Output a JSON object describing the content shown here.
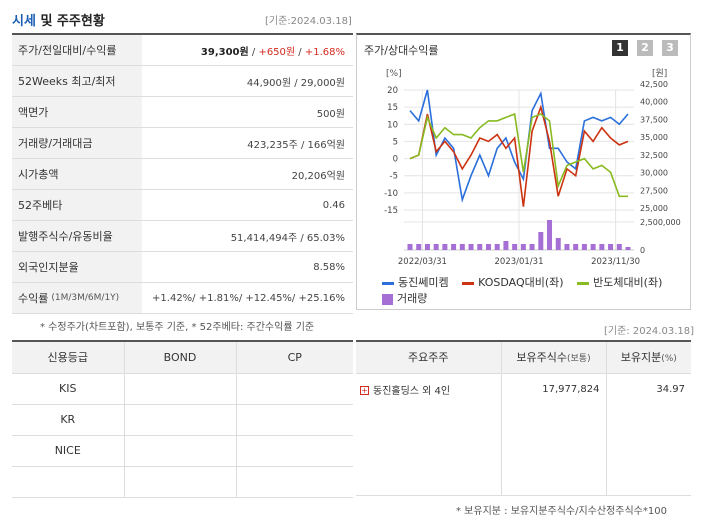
{
  "header": {
    "title_blue": "시세",
    "title_rest": " 및 주주현황",
    "date": "[기준:2024.03.18]"
  },
  "price_table": [
    {
      "label": "주가/전일대비/수익률",
      "price": "39,300원",
      "sep1": " / ",
      "change": "+650원",
      "sep2": " / ",
      "pct": "+1.68%"
    },
    {
      "label": "52Weeks 최고/최저",
      "value": "44,900원 / 29,000원"
    },
    {
      "label": "액면가",
      "value": "500원"
    },
    {
      "label": "거래량/거래대금",
      "value": "423,235주 / 166억원"
    },
    {
      "label": "시가총액",
      "value": "20,206억원"
    },
    {
      "label": "52주베타",
      "value": "0.46"
    },
    {
      "label": "발행주식수/유동비율",
      "value": "51,414,494주 / 65.03%"
    },
    {
      "label": "외국인지분율",
      "value": "8.58%"
    },
    {
      "label": "수익률",
      "label_sub": "(1M/3M/6M/1Y)",
      "value": "+1.42%/ +1.81%/ +12.45%/ +25.16%"
    }
  ],
  "note_left": "* 수정주가(차트포함), 보통주 기준, * 52주베타: 주간수익률 기준",
  "chart_panel": {
    "title": "주가/상대수익률",
    "buttons": [
      "1",
      "2",
      "3"
    ],
    "button_colors": [
      "#333333",
      "#bbbbbb",
      "#bbbbbb"
    ]
  },
  "chart_data": {
    "type": "line",
    "left_unit": "[%]",
    "right_unit": "[원]",
    "left_ticks": [
      "20",
      "15",
      "10",
      "5",
      "0",
      "-5",
      "-10",
      "-15"
    ],
    "left_range": [
      -15,
      20
    ],
    "right_ticks": [
      "42,500",
      "40,000",
      "37,500",
      "35,000",
      "32,500",
      "30,000",
      "27,500",
      "25,000"
    ],
    "volume_tick": "2,500,000",
    "volume_zero": "0",
    "x_ticks": [
      "2022/03/31",
      "2023/01/31",
      "2023/11/30"
    ],
    "series": [
      {
        "name": "동진쎄미켐",
        "color": "#2a6fdb",
        "values": [
          14,
          11,
          20,
          1,
          6,
          3,
          -12,
          -5,
          1,
          -5,
          3,
          6,
          -1,
          -6,
          14,
          19,
          3,
          3,
          -1,
          -3,
          11,
          12,
          11,
          12,
          10,
          13
        ]
      },
      {
        "name": "KOSDAQ대비(좌)",
        "color": "#cc3311",
        "values": [
          0,
          1,
          13,
          2,
          5,
          2,
          -3,
          1,
          6,
          5,
          7,
          3,
          6,
          -14,
          8,
          15,
          5,
          -11,
          -3,
          -5,
          8,
          5,
          9,
          6,
          4,
          5
        ]
      },
      {
        "name": "반도체대비(좌)",
        "color": "#88bb22",
        "values": [
          0,
          1,
          12,
          6,
          9,
          7,
          7,
          6,
          9,
          11,
          11,
          12,
          13,
          -4,
          12,
          13,
          11,
          -8,
          -2,
          -1,
          0,
          -3,
          -2,
          -4,
          -11,
          -11
        ]
      },
      {
        "name": "거래량",
        "color": "#a66fd6",
        "values": [
          1,
          1,
          1,
          1,
          1,
          1,
          1,
          1,
          1,
          1,
          1,
          1.5,
          1,
          1,
          1,
          3,
          5,
          2,
          1,
          1,
          1,
          1,
          1,
          1,
          1,
          0.5
        ]
      }
    ],
    "volume_range": [
      0,
      6
    ],
    "grid": true
  },
  "ref_date": "[기준: 2024.03.18]",
  "credit_table": {
    "headers": [
      "신용등급",
      "BOND",
      "CP"
    ],
    "rows": [
      [
        "KIS",
        "",
        ""
      ],
      [
        "KR",
        "",
        ""
      ],
      [
        "NICE",
        "",
        ""
      ],
      [
        "",
        "",
        ""
      ]
    ]
  },
  "holders_table": {
    "headers": [
      "주요주주",
      "보유주식수",
      "(보통)",
      "보유지분",
      "(%)"
    ],
    "rows": [
      {
        "name": "동진홀딩스 외 4인",
        "shares": "17,977,824",
        "pct": "34.97"
      }
    ]
  },
  "note_right": "* 보유지분 : 보유지분주식수/지수산정주식수*100"
}
